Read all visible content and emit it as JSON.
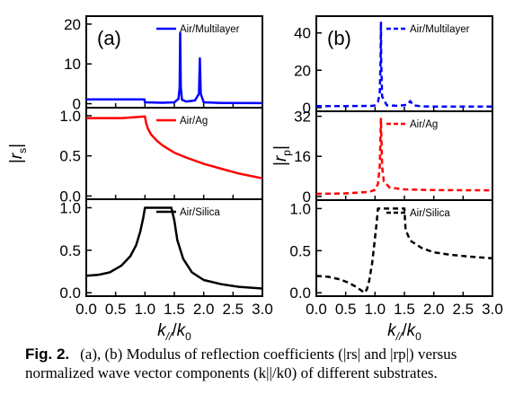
{
  "chart_data": [
    {
      "type": "line",
      "panel_label": "(a)",
      "xlabel_parts": {
        "k": "k",
        "sub1": "//",
        "slash": "/",
        "k0": "k",
        "sub0": "0"
      },
      "xlim": [
        0,
        3
      ],
      "x_ticks": [
        "0.0",
        "0.5",
        "1.0",
        "1.5",
        "2.0",
        "2.5",
        "3.0"
      ],
      "ylabel_parts": {
        "open": "|",
        "r": "r",
        "sub": "s",
        "close": "|"
      },
      "subplots": [
        {
          "ylim": [
            -1,
            22
          ],
          "y_ticks": [
            {
              "v": 0,
              "label": "0"
            },
            {
              "v": 10,
              "label": "10"
            },
            {
              "v": 20,
              "label": "20"
            }
          ],
          "legend": "Air/Multilayer",
          "color": "#0000ff",
          "dashed": false,
          "points": [
            [
              0,
              1.1
            ],
            [
              0.99,
              1.1
            ],
            [
              1.0,
              0.35
            ],
            [
              1.3,
              0.25
            ],
            [
              1.5,
              0.35
            ],
            [
              1.57,
              1.2
            ],
            [
              1.59,
              4
            ],
            [
              1.6,
              17.8
            ],
            [
              1.61,
              4
            ],
            [
              1.63,
              1.0
            ],
            [
              1.7,
              0.55
            ],
            [
              1.85,
              0.8
            ],
            [
              1.92,
              2.5
            ],
            [
              1.935,
              11.4
            ],
            [
              1.95,
              2.5
            ],
            [
              2.0,
              0.35
            ],
            [
              2.3,
              0.2
            ],
            [
              3.0,
              0.15
            ]
          ]
        },
        {
          "ylim": [
            -0.04,
            1.1
          ],
          "y_ticks": [
            {
              "v": 0.0,
              "label": "0.0"
            },
            {
              "v": 0.5,
              "label": "0.5"
            },
            {
              "v": 1.0,
              "label": "1.0"
            }
          ],
          "legend": "Air/Ag",
          "color": "#ff0000",
          "dashed": false,
          "points": [
            [
              0,
              0.97
            ],
            [
              0.3,
              0.97
            ],
            [
              0.6,
              0.97
            ],
            [
              0.9,
              0.985
            ],
            [
              1.0,
              0.99
            ],
            [
              1.02,
              0.91
            ],
            [
              1.05,
              0.84
            ],
            [
              1.1,
              0.77
            ],
            [
              1.2,
              0.69
            ],
            [
              1.3,
              0.63
            ],
            [
              1.5,
              0.54
            ],
            [
              1.7,
              0.48
            ],
            [
              2.0,
              0.4
            ],
            [
              2.3,
              0.34
            ],
            [
              2.6,
              0.28
            ],
            [
              3.0,
              0.22
            ]
          ]
        },
        {
          "ylim": [
            -0.04,
            1.1
          ],
          "y_ticks": [
            {
              "v": 0.0,
              "label": "0.0"
            },
            {
              "v": 0.5,
              "label": "0.5"
            },
            {
              "v": 1.0,
              "label": "1.0"
            }
          ],
          "legend": "Air/Silica",
          "color": "#000000",
          "dashed": false,
          "points": [
            [
              0,
              0.2
            ],
            [
              0.2,
              0.21
            ],
            [
              0.4,
              0.24
            ],
            [
              0.6,
              0.32
            ],
            [
              0.75,
              0.43
            ],
            [
              0.85,
              0.56
            ],
            [
              0.92,
              0.72
            ],
            [
              0.97,
              0.88
            ],
            [
              1.0,
              1.0
            ],
            [
              1.45,
              1.0
            ],
            [
              1.5,
              0.85
            ],
            [
              1.55,
              0.62
            ],
            [
              1.65,
              0.4
            ],
            [
              1.8,
              0.24
            ],
            [
              2.0,
              0.15
            ],
            [
              2.3,
              0.1
            ],
            [
              2.6,
              0.07
            ],
            [
              3.0,
              0.05
            ]
          ]
        }
      ]
    },
    {
      "type": "line",
      "panel_label": "(b)",
      "xlabel_parts": {
        "k": "k",
        "sub1": "//",
        "slash": "/",
        "k0": "k",
        "sub0": "0"
      },
      "xlim": [
        0,
        3
      ],
      "x_ticks": [
        "0.0",
        "0.5",
        "1.0",
        "1.5",
        "2.0",
        "2.5",
        "3.0"
      ],
      "ylabel_parts": {
        "open": "|",
        "r": "r",
        "sub": "p",
        "close": "|"
      },
      "subplots": [
        {
          "ylim": [
            -2,
            49
          ],
          "y_ticks": [
            {
              "v": 0,
              "label": "0"
            },
            {
              "v": 20,
              "label": "20"
            },
            {
              "v": 40,
              "label": "40"
            }
          ],
          "legend": "Air/Multilayer",
          "color": "#0000ff",
          "dashed": true,
          "points": [
            [
              0,
              0.8
            ],
            [
              0.5,
              0.8
            ],
            [
              0.95,
              0.9
            ],
            [
              1.0,
              1.2
            ],
            [
              1.05,
              3
            ],
            [
              1.08,
              8
            ],
            [
              1.095,
              25
            ],
            [
              1.1,
              46
            ],
            [
              1.105,
              25
            ],
            [
              1.12,
              6
            ],
            [
              1.2,
              1.2
            ],
            [
              1.4,
              0.9
            ],
            [
              1.55,
              1.5
            ],
            [
              1.6,
              3.5
            ],
            [
              1.65,
              1.2
            ],
            [
              1.8,
              0.6
            ],
            [
              2.2,
              0.5
            ],
            [
              3.0,
              0.5
            ]
          ]
        },
        {
          "ylim": [
            -1.5,
            34
          ],
          "y_ticks": [
            {
              "v": 0,
              "label": "0"
            },
            {
              "v": 16,
              "label": "16"
            },
            {
              "v": 32,
              "label": "32"
            }
          ],
          "legend": "Air/Ag",
          "color": "#ff0000",
          "dashed": true,
          "points": [
            [
              0,
              1.0
            ],
            [
              0.5,
              1.2
            ],
            [
              0.9,
              1.8
            ],
            [
              1.0,
              2.6
            ],
            [
              1.05,
              5
            ],
            [
              1.08,
              12
            ],
            [
              1.1,
              31
            ],
            [
              1.12,
              12
            ],
            [
              1.15,
              6
            ],
            [
              1.25,
              3.5
            ],
            [
              1.5,
              2.8
            ],
            [
              2.0,
              2.5
            ],
            [
              3.0,
              2.4
            ]
          ]
        },
        {
          "ylim": [
            -0.04,
            1.1
          ],
          "y_ticks": [
            {
              "v": 0.0,
              "label": "0.0"
            },
            {
              "v": 0.5,
              "label": "0.5"
            },
            {
              "v": 1.0,
              "label": "1.0"
            }
          ],
          "legend": "Air/Silica",
          "color": "#000000",
          "dashed": true,
          "points": [
            [
              0,
              0.2
            ],
            [
              0.2,
              0.19
            ],
            [
              0.4,
              0.16
            ],
            [
              0.55,
              0.12
            ],
            [
              0.68,
              0.07
            ],
            [
              0.78,
              0.02
            ],
            [
              0.82,
              0.0
            ],
            [
              0.86,
              0.04
            ],
            [
              0.9,
              0.14
            ],
            [
              0.95,
              0.35
            ],
            [
              1.0,
              0.65
            ],
            [
              1.03,
              0.85
            ],
            [
              1.05,
              1.0
            ],
            [
              1.5,
              1.0
            ],
            [
              1.52,
              0.75
            ],
            [
              1.6,
              0.62
            ],
            [
              1.8,
              0.53
            ],
            [
              2.0,
              0.48
            ],
            [
              2.3,
              0.45
            ],
            [
              2.6,
              0.43
            ],
            [
              3.0,
              0.41
            ]
          ]
        }
      ]
    }
  ],
  "caption": {
    "label": "Fig. 2.",
    "text": "(a), (b) Modulus of reflection coefficients (|rs| and |rp|) versus normalized wave vector components (k||/k0) of different substrates."
  }
}
